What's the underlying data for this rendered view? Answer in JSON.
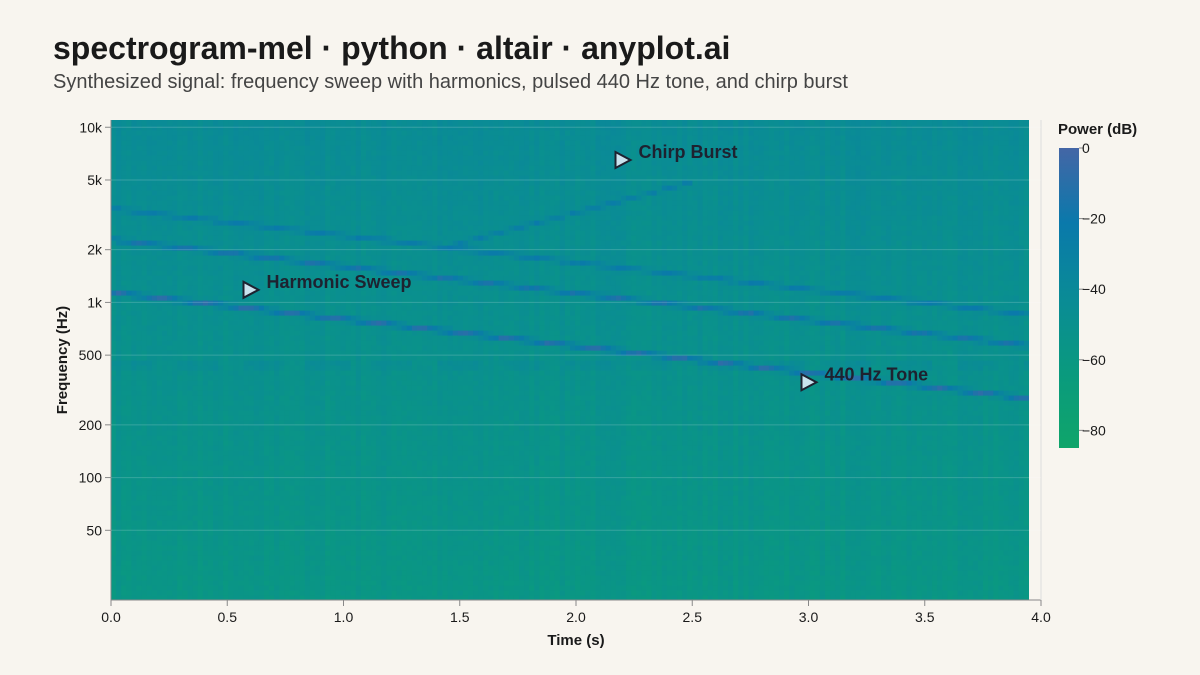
{
  "header": {
    "title": "spectrogram-mel · python · altair · anyplot.ai",
    "subtitle": "Synthesized signal: frequency sweep with harmonics, pulsed 440 Hz tone, and chirp burst"
  },
  "chart_data": {
    "type": "heatmap",
    "xlabel": "Time (s)",
    "ylabel": "Frequency (Hz)",
    "xlim": [
      0,
      4
    ],
    "ylim": [
      20,
      11000
    ],
    "y_scale": "log",
    "x_ticks": [
      "0.0",
      "0.5",
      "1.0",
      "1.5",
      "2.0",
      "2.5",
      "3.0",
      "3.5",
      "4.0"
    ],
    "y_ticks": [
      {
        "value": 50,
        "label": "50"
      },
      {
        "value": 100,
        "label": "100"
      },
      {
        "value": 200,
        "label": "200"
      },
      {
        "value": 500,
        "label": "500"
      },
      {
        "value": 1000,
        "label": "1k"
      },
      {
        "value": 2000,
        "label": "2k"
      },
      {
        "value": 5000,
        "label": "5k"
      },
      {
        "value": 10000,
        "label": "10k"
      }
    ],
    "colorbar": {
      "title": "Power (dB)",
      "domain": [
        -85,
        0
      ],
      "ticks": [
        {
          "value": 0,
          "label": "0"
        },
        {
          "value": -20,
          "label": "−20"
        },
        {
          "value": -40,
          "label": "−40"
        },
        {
          "value": -60,
          "label": "−60"
        },
        {
          "value": -80,
          "label": "−80"
        }
      ],
      "colors": [
        "#4466a6",
        "#0a79ab",
        "#0a8b96",
        "#0a9a7e",
        "#0fa56a"
      ]
    },
    "components": [
      {
        "type": "sweep",
        "t": [
          0,
          4
        ],
        "f_start": 1150,
        "f_end": 280,
        "harmonics": [
          1,
          2,
          3
        ],
        "power_db": [
          -10,
          -16,
          -24
        ]
      },
      {
        "type": "pulsed_tone",
        "f": 440,
        "power_db": -30,
        "on_s": 0.18,
        "off_s": 0.1
      },
      {
        "type": "chirp",
        "t": [
          1.45,
          2.5
        ],
        "f_start": 2100,
        "f_end": 4900,
        "power_db": -26
      }
    ],
    "annotations": [
      {
        "label": "Harmonic Sweep",
        "x": 0.6,
        "y": 1180
      },
      {
        "label": "Chirp Burst",
        "x": 2.2,
        "y": 6500
      },
      {
        "label": "440 Hz Tone",
        "x": 3.0,
        "y": 350
      }
    ]
  }
}
